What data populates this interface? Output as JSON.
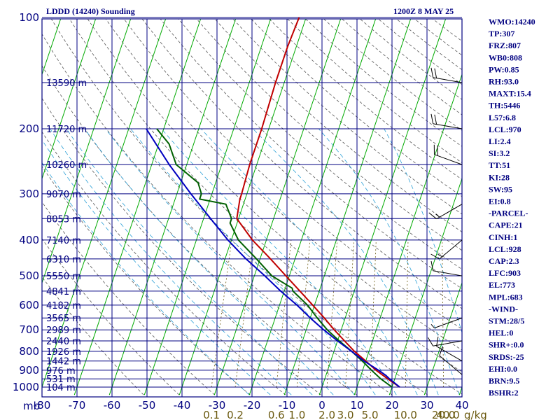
{
  "colors": {
    "frame": "#000080",
    "isotherm": "#00aa00",
    "dry_adiabat": "#555555",
    "moist_adiabat": "#2a9fd6",
    "mixing_ratio": "#6b5a10",
    "temperature": "#c00000",
    "dewpoint": "#006000",
    "parcel": "#0000c0",
    "wind": "#000000"
  },
  "header": {
    "station": "LDDD (14240) Sounding",
    "time": "1200Z  8 MAY 25"
  },
  "axes": {
    "pressure_unit": "mb",
    "pressure_ticks": [
      100,
      200,
      300,
      400,
      500,
      600,
      700,
      800,
      900,
      1000
    ],
    "temperature_ticks": [
      "-80",
      "-70",
      "-60",
      "-50",
      "-40",
      "-30",
      "-20",
      "-10",
      "0",
      "10",
      "20",
      "30",
      "40"
    ],
    "temperature_range": [
      -80,
      40
    ],
    "pressure_range": [
      1000,
      100
    ],
    "mixing_ratio_labels": [
      "0.1",
      "0.2",
      "0.6",
      "1.0",
      "2.0",
      "3.0",
      "5.0",
      "10.0",
      "20.0",
      "40.0"
    ],
    "mixing_ratio_unit": "g/kg",
    "height_levels": [
      {
        "p": 150,
        "label": "13590 m"
      },
      {
        "p": 200,
        "label": "11720 m"
      },
      {
        "p": 250,
        "label": "10260 m"
      },
      {
        "p": 300,
        "label": "9070 m"
      },
      {
        "p": 350,
        "label": "8053 m"
      },
      {
        "p": 400,
        "label": "7140 m"
      },
      {
        "p": 450,
        "label": "6310 m"
      },
      {
        "p": 500,
        "label": "5550 m"
      },
      {
        "p": 550,
        "label": "4841 m"
      },
      {
        "p": 600,
        "label": "4182 m"
      },
      {
        "p": 650,
        "label": "3565 m"
      },
      {
        "p": 700,
        "label": "2989 m"
      },
      {
        "p": 750,
        "label": "2440 m"
      },
      {
        "p": 800,
        "label": "1926 m"
      },
      {
        "p": 850,
        "label": "1442 m"
      },
      {
        "p": 900,
        "label": "976 m"
      },
      {
        "p": 950,
        "label": "531 m"
      },
      {
        "p": 1000,
        "label": "104 m"
      }
    ]
  },
  "chart_data": {
    "type": "line",
    "subtype": "skew-T log-P",
    "series": [
      {
        "key": "temperature",
        "points": [
          [
            1000,
            12.2
          ],
          [
            950,
            8
          ],
          [
            900,
            3.8
          ],
          [
            850,
            0
          ],
          [
            800,
            -4.2
          ],
          [
            750,
            -8
          ],
          [
            700,
            -12
          ],
          [
            650,
            -16
          ],
          [
            600,
            -20.5
          ],
          [
            550,
            -25.5
          ],
          [
            500,
            -31
          ],
          [
            450,
            -37
          ],
          [
            400,
            -44
          ],
          [
            350,
            -50.5
          ],
          [
            310,
            -51.5
          ],
          [
            300,
            -51.5
          ],
          [
            250,
            -52
          ],
          [
            200,
            -52
          ],
          [
            150,
            -52.5
          ],
          [
            120,
            -52.5
          ],
          [
            100,
            -52
          ]
        ]
      },
      {
        "key": "dewpoint",
        "points": [
          [
            1000,
            10
          ],
          [
            950,
            6
          ],
          [
            900,
            2.5
          ],
          [
            850,
            -1
          ],
          [
            800,
            -5
          ],
          [
            750,
            -9.5
          ],
          [
            700,
            -14
          ],
          [
            650,
            -18
          ],
          [
            600,
            -22
          ],
          [
            550,
            -27.5
          ],
          [
            540,
            -28
          ],
          [
            500,
            -35
          ],
          [
            450,
            -41
          ],
          [
            400,
            -48
          ],
          [
            360,
            -52
          ],
          [
            350,
            -52
          ],
          [
            330,
            -54
          ],
          [
            320,
            -55
          ],
          [
            310,
            -63
          ],
          [
            300,
            -63
          ],
          [
            280,
            -65
          ],
          [
            250,
            -73
          ],
          [
            220,
            -77
          ],
          [
            200,
            -82
          ]
        ]
      },
      {
        "key": "parcel",
        "points": [
          [
            1000,
            12.2
          ],
          [
            950,
            8.5
          ],
          [
            928,
            7
          ],
          [
            900,
            4.5
          ],
          [
            850,
            -0.5
          ],
          [
            800,
            -5
          ],
          [
            750,
            -10
          ],
          [
            700,
            -15
          ],
          [
            650,
            -20
          ],
          [
            600,
            -25
          ],
          [
            550,
            -31
          ],
          [
            500,
            -37
          ],
          [
            450,
            -44
          ],
          [
            400,
            -51
          ],
          [
            350,
            -58
          ],
          [
            300,
            -66
          ],
          [
            250,
            -75
          ],
          [
            200,
            -85
          ]
        ]
      }
    ],
    "wind_barbs": [
      {
        "p": 150,
        "dir": 280,
        "kt": 20
      },
      {
        "p": 200,
        "dir": 280,
        "kt": 20
      },
      {
        "p": 250,
        "dir": 290,
        "kt": 20
      },
      {
        "p": 320,
        "dir": 240,
        "kt": 15
      },
      {
        "p": 400,
        "dir": 230,
        "kt": 15
      },
      {
        "p": 500,
        "dir": 280,
        "kt": 10
      },
      {
        "p": 650,
        "dir": 250,
        "kt": 5
      },
      {
        "p": 750,
        "dir": 260,
        "kt": 10
      },
      {
        "p": 850,
        "dir": 300,
        "kt": 10
      },
      {
        "p": 925,
        "dir": 310,
        "kt": 10
      }
    ]
  },
  "stats": [
    "WMO:14240",
    "TP:307",
    "FRZ:807",
    "WB0:808",
    "PW:0.85",
    "RH:93.0",
    "MAXT:15.4",
    "TH:5446",
    "L57:6.8",
    "LCL:970",
    "LI:2.4",
    "SI:3.2",
    "TT:51",
    "KI:28",
    "SW:95",
    "EI:0.8",
    "-PARCEL-",
    "CAPE:21",
    "CINH:1",
    "LCL:928",
    "CAP:2.3",
    "LFC:903",
    "EL:773",
    "MPL:683",
    "-WIND-",
    "STM:28/5",
    "HEL:0",
    "SHR+:0.0",
    "SRDS:-25",
    "EHI:0.0",
    "BRN:9.5",
    "BSHR:2"
  ]
}
